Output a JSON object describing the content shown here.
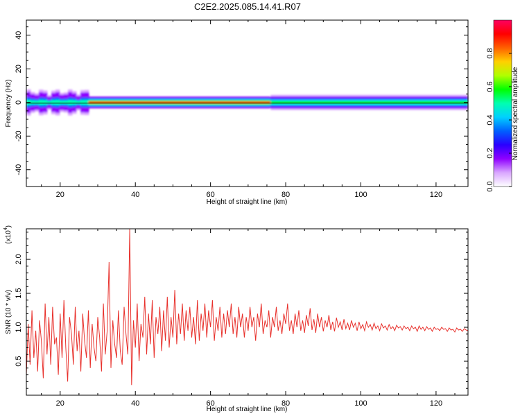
{
  "title": "C2E2.2025.085.14.41.R07",
  "chart_data": [
    {
      "type": "heatmap",
      "xlabel": "Height of straight line (km)",
      "ylabel": "Frequency (Hz)",
      "xlim": [
        11,
        128.5
      ],
      "ylim": [
        -50,
        49
      ],
      "xticks": [
        20,
        40,
        60,
        80,
        100,
        120
      ],
      "yticks": [
        -40,
        -20,
        0,
        20,
        40
      ],
      "colorbar": {
        "label": "Normalized spectral amplitude",
        "range": [
          0,
          1
        ],
        "ticks": [
          "0.0",
          "0.2",
          "0.4",
          "0.6",
          "0.8"
        ],
        "colors": [
          "#ffffff",
          "#d9a6ff",
          "#8f00ff",
          "#2a00ff",
          "#0060ff",
          "#00d0ff",
          "#00ffb0",
          "#00ff00",
          "#b0ff00",
          "#ffd000",
          "#ff6000",
          "#ff0000",
          "#ff0060"
        ]
      },
      "signal": {
        "center_frequency_hz": 0,
        "segments": [
          {
            "x": [
              11,
              27.5
            ],
            "halfwidth_hz": 6,
            "level": 0.45,
            "variable": true
          },
          {
            "x": [
              27.5,
              76
            ],
            "halfwidth_hz": 3.5,
            "level": 0.95
          },
          {
            "x": [
              76,
              128.5
            ],
            "halfwidth_hz": 4.5,
            "level": 0.62
          }
        ]
      }
    },
    {
      "type": "line",
      "xlabel": "Height of straight line (km)",
      "ylabel": "SNR (10 * v/v)",
      "multiplier": "(x10",
      "multiplier_exponent": "4",
      "xlim": [
        11,
        128.5
      ],
      "ylim": [
        0,
        2.45
      ],
      "xticks": [
        20,
        40,
        60,
        80,
        100,
        120
      ],
      "yticks": [
        "0.5",
        "1.0",
        "1.5",
        "2.0"
      ],
      "line_color": "#e8312c",
      "series": [
        {
          "x_step_km": 0.5,
          "x_start_km": 11,
          "values": [
            0.3,
            1.05,
            0.45,
            1.25,
            0.55,
            0.95,
            0.35,
            1.1,
            0.8,
            0.25,
            1.35,
            0.6,
            1.15,
            0.45,
            1.3,
            0.75,
            0.85,
            0.3,
            1.2,
            0.55,
            1.4,
            0.7,
            0.2,
            1.15,
            0.9,
            0.45,
            1.3,
            0.65,
            0.95,
            0.35,
            1.2,
            0.8,
            0.55,
            1.25,
            0.4,
            1.05,
            0.7,
            0.5,
            1.15,
            0.85,
            0.35,
            1.35,
            0.6,
            0.95,
            1.96,
            0.4,
            1.1,
            0.75,
            0.55,
            1.25,
            0.65,
            0.45,
            1.3,
            0.9,
            0.6,
            2.45,
            0.15,
            1.1,
            0.7,
            1.35,
            0.5,
            1.05,
            0.85,
            1.45,
            0.6,
            1.2,
            0.75,
            1.4,
            0.55,
            1.15,
            0.9,
            1.3,
            0.65,
            1.25,
            0.8,
            1.45,
            0.7,
            1.15,
            0.85,
            1.55,
            0.75,
            1.2,
            0.9,
            1.35,
            0.8,
            1.25,
            0.95,
            1.3,
            0.85,
            1.15,
            0.75,
            1.4,
            0.8,
            1.2,
            0.95,
            1.35,
            0.85,
            1.25,
            1.0,
            1.4,
            0.8,
            1.15,
            0.95,
            1.3,
            0.85,
            1.2,
            0.9,
            1.25,
            1.0,
            1.35,
            0.9,
            1.15,
            0.85,
            1.3,
            1.0,
            1.2,
            0.85,
            1.15,
            0.95,
            1.3,
            1.0,
            1.15,
            0.8,
            1.2,
            1.0,
            1.35,
            0.9,
            1.1,
            1.0,
            1.25,
            0.85,
            1.15,
            1.0,
            1.3,
            0.95,
            1.1,
            0.9,
            1.2,
            1.05,
            1.35,
            0.95,
            1.1,
            0.9,
            1.2,
            1.0,
            1.25,
            0.95,
            1.1,
            0.92,
            1.18,
            1.02,
            1.28,
            0.96,
            1.12,
            0.92,
            1.2,
            1.0,
            1.15,
            0.94,
            1.1,
            1.0,
            1.18,
            0.96,
            1.08,
            0.94,
            1.14,
            1.0,
            1.08,
            0.96,
            1.12,
            0.98,
            1.06,
            0.96,
            1.1,
            1.0,
            1.06,
            0.95,
            1.08,
            0.98,
            1.04,
            0.95,
            1.08,
            1.0,
            1.04,
            0.96,
            1.06,
            0.98,
            1.02,
            0.95,
            1.05,
            0.99,
            1.02,
            0.96,
            1.04,
            0.98,
            1.01,
            0.95,
            1.03,
            0.99,
            1.01,
            0.96,
            1.02,
            0.98,
            1.0,
            0.95,
            1.02,
            0.98,
            1.0,
            0.94,
            1.02,
            0.97,
            1.0,
            0.95,
            1.01,
            0.97,
            0.99,
            0.94,
            1.0,
            0.97,
            0.98,
            0.95,
            1.0,
            0.97,
            0.98,
            0.94,
            0.99,
            0.96,
            0.97,
            0.93,
            0.99,
            0.96,
            0.97,
            0.94,
            0.98,
            0.96,
            0.95
          ]
        }
      ]
    }
  ]
}
